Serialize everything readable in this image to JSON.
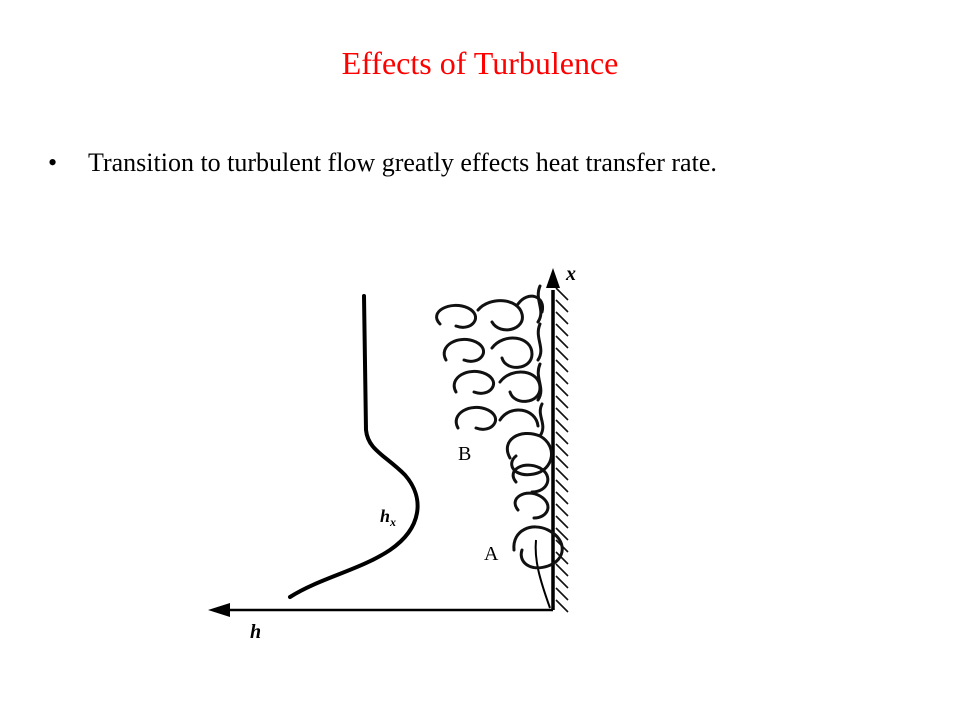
{
  "slide": {
    "title": "Effects of Turbulence",
    "title_color": "#ff0000",
    "bullets": [
      {
        "marker": "•",
        "text": "Transition to turbulent flow greatly effects heat transfer rate."
      }
    ]
  },
  "figure": {
    "labels": {
      "x_axis": "x",
      "h_axis": "h",
      "curve": "h",
      "curve_subscript": "x",
      "point_b": "B",
      "point_a": "A"
    }
  }
}
